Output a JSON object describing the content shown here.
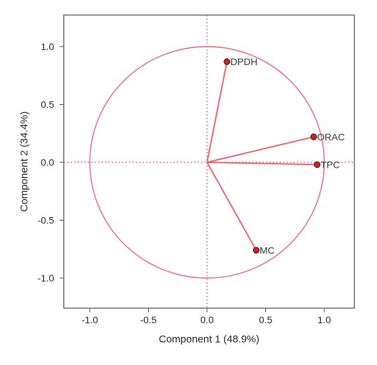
{
  "chart_data": {
    "type": "scatter",
    "subtype": "pca-loading-plot",
    "title": "",
    "xlabel": "Component 1 (48.9%)",
    "ylabel": "Component 2 (34.4%)",
    "xlim": [
      -1.25,
      1.25
    ],
    "ylim": [
      -1.25,
      1.25
    ],
    "xticks": [
      -1.0,
      -0.5,
      0.0,
      0.5,
      1.0
    ],
    "yticks": [
      1.0,
      0.5,
      0.0,
      -0.5,
      -1.0
    ],
    "xtick_labels": [
      "-1.0",
      "-0.5",
      "0.0",
      "0.5",
      "1.0"
    ],
    "ytick_labels": [
      "1.0",
      "0.5",
      "0.0",
      "-0.5",
      "-1.0"
    ],
    "grid": false,
    "unit_circle": true,
    "origin_reference_lines": true,
    "points": [
      {
        "label": "DPDH",
        "x": 0.17,
        "y": 0.87
      },
      {
        "label": "ORAC",
        "x": 0.91,
        "y": 0.22
      },
      {
        "label": "TPC",
        "x": 0.94,
        "y": -0.02
      },
      {
        "label": "MC",
        "x": 0.42,
        "y": -0.76
      }
    ],
    "colors": {
      "vector": "#e8636b",
      "circle": "#e8636b",
      "reference_lines": "#e25661",
      "point_fill": "#d81e2a",
      "point_stroke": "#3a1a1a",
      "frame": "#444444",
      "plot_background": "#ffffff",
      "page_background": "#ffffff"
    }
  }
}
